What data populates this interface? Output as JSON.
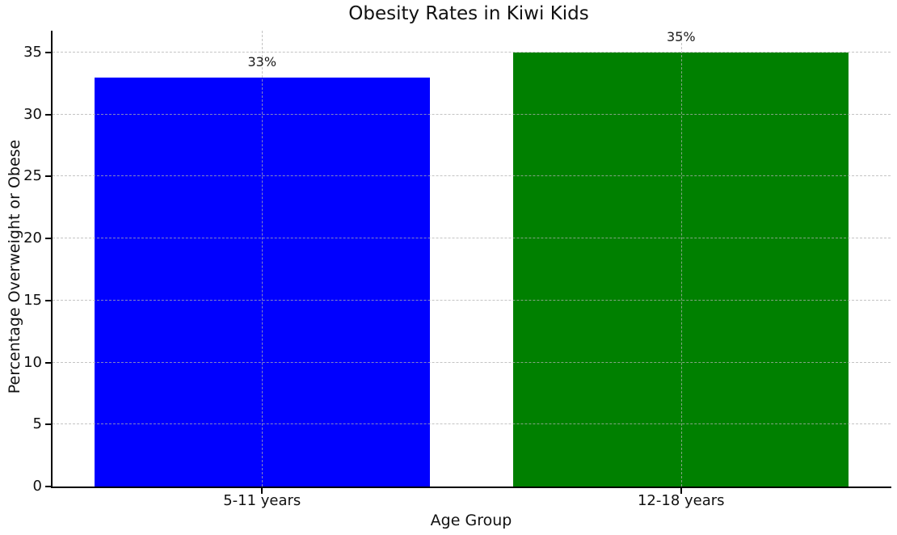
{
  "chart_data": {
    "type": "bar",
    "title": "Obesity Rates in Kiwi Kids",
    "xlabel": "Age Group",
    "ylabel": "Percentage Overweight or Obese",
    "categories": [
      "5-11 years",
      "12-18 years"
    ],
    "values": [
      33,
      35
    ],
    "bar_labels": [
      "33%",
      "35%"
    ],
    "bar_colors": [
      "#0000ff",
      "#008000"
    ],
    "yticks": [
      0,
      5,
      10,
      15,
      20,
      25,
      30,
      35
    ],
    "ylim": [
      0,
      36.75
    ],
    "bar_width_frac": 0.8,
    "grid": "both, dashed, drawn above bars",
    "grid_color": "#b0b0b0",
    "spine_color": "#000000",
    "text_color": "#111111",
    "legend": "none"
  }
}
